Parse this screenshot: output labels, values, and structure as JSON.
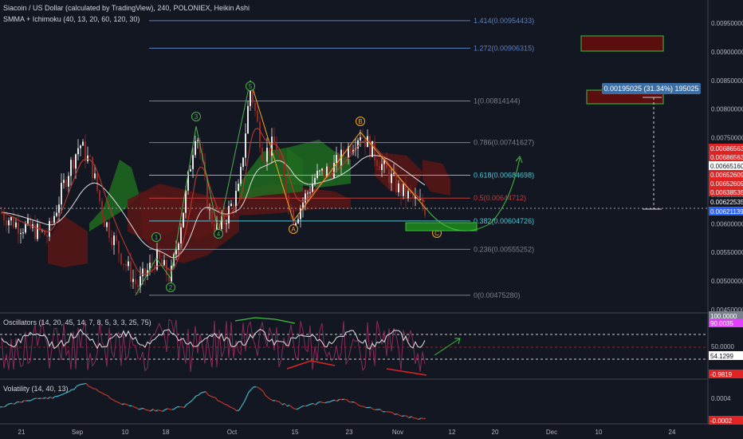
{
  "header": {
    "title": "Siacoin / US Dollar (calculated by TradingView), 240, POLONIEX, Heikin Ashi",
    "indicator": "SMMA + Ichimoku (40, 13, 20, 60, 120, 30)"
  },
  "panels": {
    "oscillators_label": "Oscillators (14, 20, 45, 14, 7, 8, 5, 3, 3, 25, 75)",
    "volatility_label": "Volatility (14, 40, 13)"
  },
  "colors": {
    "background": "#131722",
    "up": "#e6e6e6",
    "down": "#8f2a22",
    "fib": "#7a7f8c",
    "fib_cyan": "#4dc7d6",
    "fib_red": "#c23a3a",
    "wave_green": "#4caf50",
    "wave_orange": "#f5a623",
    "cloud_green": "#1e6b1e",
    "cloud_red": "#5a1616",
    "smma": "#e0e0e0",
    "price_tag_red": "#e02424",
    "price_tag_blue": "#2962ff",
    "tooltip": "#3b6ea5"
  },
  "chart_data": [
    {
      "type": "candlestick",
      "title": "Siacoin / US Dollar (calculated by TradingView), 240, POLONIEX, Heikin Ashi",
      "x_ticks": [
        "21",
        "Sep",
        "10",
        "18",
        "Oct",
        "15",
        "23",
        "Nov",
        "12",
        "20",
        "Dec",
        "10",
        "24"
      ],
      "y_ticks": [
        "0.00950000",
        "0.00900000",
        "0.00850000",
        "0.00800000",
        "0.00750000",
        "0.00700000",
        "0.00650000",
        "0.00600000",
        "0.00550000",
        "0.00500000",
        "0.00450000"
      ],
      "ylim": [
        0.0044,
        0.0099
      ],
      "fib_levels": [
        {
          "ratio": "1.414",
          "price": 0.00954433,
          "label": "1.414(0.00954433)"
        },
        {
          "ratio": "1.272",
          "price": 0.00906315,
          "label": "1.272(0.00906315)"
        },
        {
          "ratio": "1",
          "price": 0.00814144,
          "label": "1(0.00814144)"
        },
        {
          "ratio": "0.786",
          "price": 0.00741627,
          "label": "0.786(0.00741627)"
        },
        {
          "ratio": "0.618",
          "price": 0.00684698,
          "label": "0.618(0.00684698)"
        },
        {
          "ratio": "0.5",
          "price": 0.00644712,
          "label": "0.5(0.00644712)"
        },
        {
          "ratio": "0.382",
          "price": 0.00604726,
          "label": "0.382(0.00604726)"
        },
        {
          "ratio": "0.236",
          "price": 0.00555252,
          "label": "0.236(0.00555252)"
        },
        {
          "ratio": "0",
          "price": 0.0047528,
          "label": "0(0.00475280)"
        }
      ],
      "elliott_waves": [
        {
          "label": "1",
          "price": 0.0054
        },
        {
          "label": "2",
          "price": 0.005
        },
        {
          "label": "3",
          "price": 0.0077
        },
        {
          "label": "4",
          "price": 0.0058
        },
        {
          "label": "5",
          "price": 0.0085
        },
        {
          "label": "A",
          "price": 0.006
        },
        {
          "label": "B",
          "price": 0.0077
        },
        {
          "label": "C",
          "price": 0.0059
        }
      ],
      "price_tags": [
        {
          "value": "0.00686563",
          "color": "#e02424"
        },
        {
          "value": "0.00686563",
          "color": "#e02424"
        },
        {
          "value": "0.00665160",
          "color": "#ffffff"
        },
        {
          "value": "0.00652609",
          "color": "#e02424"
        },
        {
          "value": "0.00652609",
          "color": "#e02424"
        },
        {
          "value": "0.00638535",
          "color": "#e02424"
        },
        {
          "value": "0.00622535",
          "color": "#131722"
        },
        {
          "value": "0.00621139",
          "color": "#2962ff"
        }
      ],
      "measure_tooltip": "0.00195025 (31.34%) 195025"
    },
    {
      "type": "line",
      "name": "Oscillators (14, 20, 45, 14, 7, 8, 5, 3, 3, 25, 75)",
      "y_ticks": [
        "50.0000"
      ],
      "value_tags": [
        {
          "value": "100.0000",
          "color": "#7a7f8c"
        },
        {
          "value": "90.0035",
          "color": "#e040fb"
        },
        {
          "value": "54.1299",
          "color": "#ffffff"
        },
        {
          "value": "-0.9819",
          "color": "#e02424"
        }
      ]
    },
    {
      "type": "line",
      "name": "Volatility (14, 40, 13)",
      "y_ticks": [
        "0.0004"
      ],
      "value_tags": [
        {
          "value": "-0.0002",
          "color": "#e02424"
        }
      ]
    }
  ]
}
